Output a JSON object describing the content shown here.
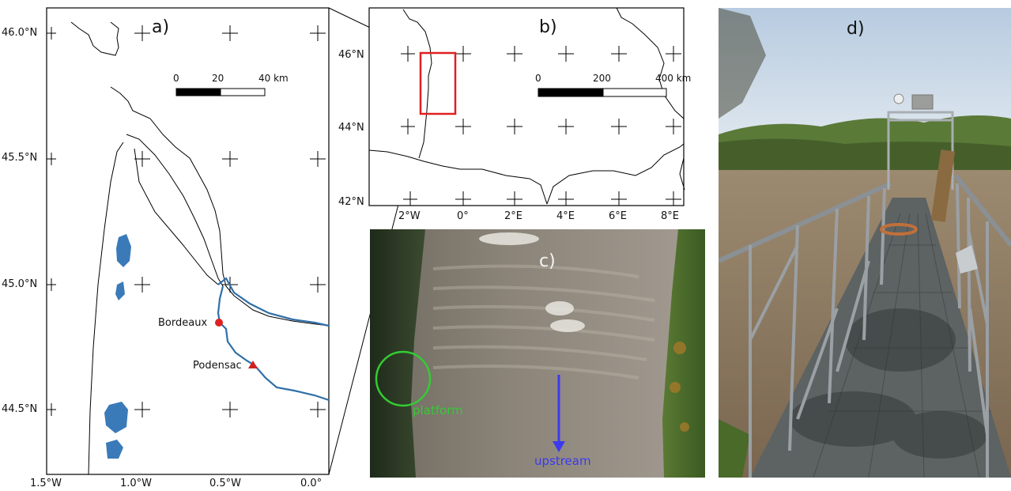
{
  "panel_a": {
    "label": "a)",
    "lat_ticks": [
      "46.0°N",
      "45.5°N",
      "45.0°N",
      "44.5°N"
    ],
    "lon_ticks": [
      "1.5°W",
      "1.0°W",
      "0.5°W",
      "0.0°"
    ],
    "scale_bar": {
      "labels": [
        "0",
        "20",
        "40 km"
      ]
    },
    "places": [
      {
        "name": "Bordeaux",
        "marker": "circle",
        "color": "#e02020"
      },
      {
        "name": "Podensac",
        "marker": "triangle",
        "color": "#d02020"
      }
    ],
    "water_color": "#3a7ab8",
    "river_color": "#2f6fa8"
  },
  "panel_b": {
    "label": "b)",
    "lat_ticks": [
      "46°N",
      "44°N",
      "42°N"
    ],
    "lon_ticks": [
      "2°W",
      "0°",
      "2°E",
      "4°E",
      "6°E",
      "8°E"
    ],
    "scale_bar": {
      "labels": [
        "0",
        "200",
        "400 km"
      ]
    },
    "inset_box_color": "#e02020"
  },
  "panel_c": {
    "label": "c)",
    "platform_label": "platform",
    "platform_color": "#33cc33",
    "upstream_label": "upstream",
    "upstream_color": "#3a3aee"
  },
  "panel_d": {
    "label": "d)"
  }
}
